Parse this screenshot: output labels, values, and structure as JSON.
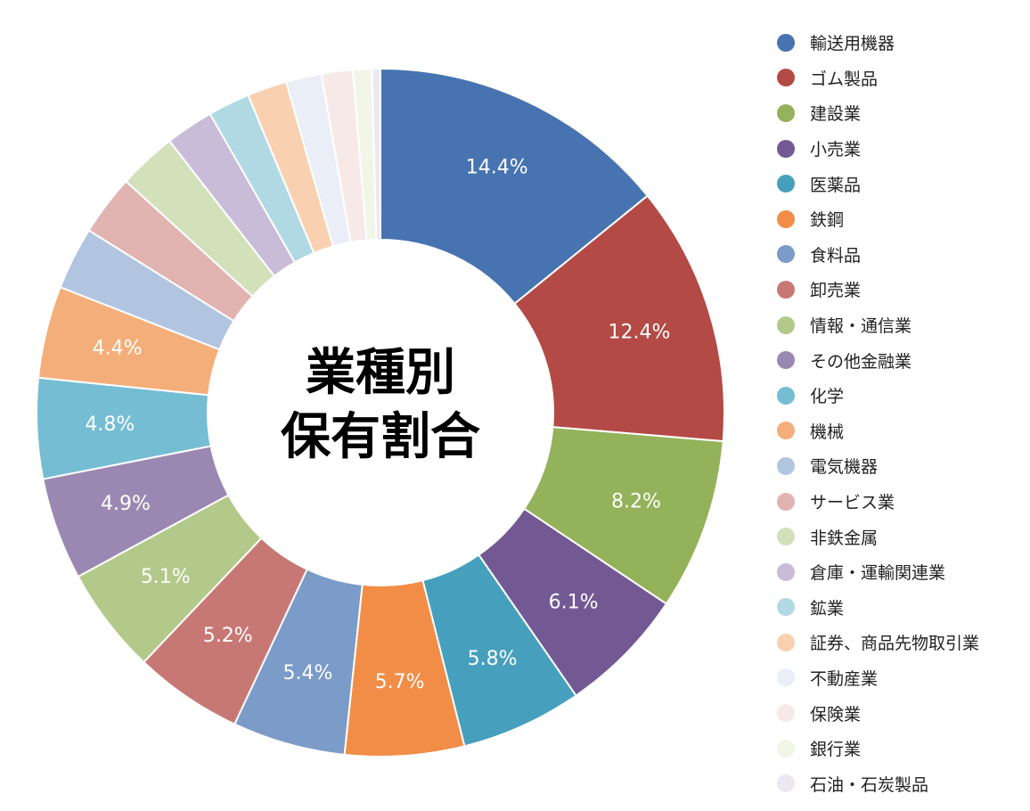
{
  "chart_data": {
    "type": "pie",
    "donut": true,
    "center_title": [
      "業種別",
      "保有割合"
    ],
    "legend_position": "right",
    "label_format": "percent, 1 decimal; shown on slices of 4.4% and above",
    "series": [
      {
        "name": "輸送用機器",
        "value": 14.4,
        "label": "14.4%",
        "color": "#4774b1"
      },
      {
        "name": "ゴム製品",
        "value": 12.4,
        "label": "12.4%",
        "color": "#b34a46"
      },
      {
        "name": "建設業",
        "value": 8.2,
        "label": "8.2%",
        "color": "#94b25a"
      },
      {
        "name": "小売業",
        "value": 6.1,
        "label": "6.1%",
        "color": "#735994"
      },
      {
        "name": "医薬品",
        "value": 5.8,
        "label": "5.8%",
        "color": "#46a0bd"
      },
      {
        "name": "鉄鋼",
        "value": 5.7,
        "label": "5.7%",
        "color": "#f28d47"
      },
      {
        "name": "食料品",
        "value": 5.4,
        "label": "5.4%",
        "color": "#7b9bc8"
      },
      {
        "name": "卸売業",
        "value": 5.2,
        "label": "5.2%",
        "color": "#c87874"
      },
      {
        "name": "情報・通信業",
        "value": 5.1,
        "label": "5.1%",
        "color": "#b3c98a"
      },
      {
        "name": "その他金融業",
        "value": 4.9,
        "label": "4.9%",
        "color": "#9b88b2"
      },
      {
        "name": "化学",
        "value": 4.8,
        "label": "4.8%",
        "color": "#75bdd3"
      },
      {
        "name": "機械",
        "value": 4.4,
        "label": "4.4%",
        "color": "#f4ae79"
      },
      {
        "name": "電気機器",
        "value": 3.0,
        "label": "",
        "color": "#b2c5e0"
      },
      {
        "name": "サービス業",
        "value": 2.9,
        "label": "",
        "color": "#e1b4b1"
      },
      {
        "name": "非鉄金属",
        "value": 2.8,
        "label": "",
        "color": "#d3e1bb"
      },
      {
        "name": "倉庫・運輸関連業",
        "value": 2.3,
        "label": "",
        "color": "#c8bcd8"
      },
      {
        "name": "鉱業",
        "value": 2.0,
        "label": "",
        "color": "#b1d9e4"
      },
      {
        "name": "証券、商品先物取引業",
        "value": 1.9,
        "label": "",
        "color": "#f9d1b1"
      },
      {
        "name": "不動産業",
        "value": 1.7,
        "label": "",
        "color": "#eaeef6"
      },
      {
        "name": "保険業",
        "value": 1.5,
        "label": "",
        "color": "#f8e9e9"
      },
      {
        "name": "銀行業",
        "value": 0.9,
        "label": "",
        "color": "#f1f6e9"
      },
      {
        "name": "石油・石炭製品",
        "value": 0.4,
        "label": "",
        "color": "#ebe8f2"
      }
    ]
  }
}
